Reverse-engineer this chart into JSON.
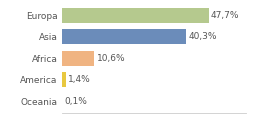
{
  "categories": [
    "Europa",
    "Asia",
    "Africa",
    "America",
    "Oceania"
  ],
  "values": [
    47.7,
    40.3,
    10.6,
    1.4,
    0.1
  ],
  "labels": [
    "47,7%",
    "40,3%",
    "10,6%",
    "1,4%",
    "0,1%"
  ],
  "bar_colors": [
    "#b5c98e",
    "#6b8cba",
    "#f0b482",
    "#e8c840",
    "#e8c840"
  ],
  "background_color": "#ffffff",
  "xlim": [
    0,
    60
  ],
  "bar_height": 0.7,
  "label_fontsize": 6.5,
  "tick_fontsize": 6.5
}
